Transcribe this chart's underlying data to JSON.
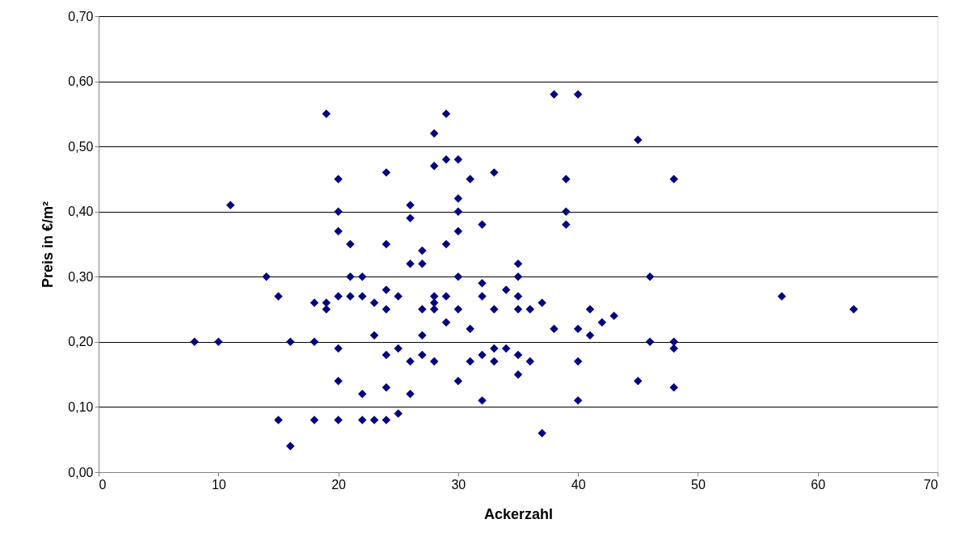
{
  "chart_data": {
    "type": "scatter",
    "xlabel": "Ackerzahl",
    "ylabel": "Preis in €/m²",
    "xlim": [
      0,
      70
    ],
    "xticks": [
      0,
      10,
      20,
      30,
      40,
      50,
      60,
      70
    ],
    "ylim": [
      0,
      0.7
    ],
    "yticks": [
      {
        "value": 0,
        "label": "0,00"
      },
      {
        "value": 0.1,
        "label": "0,10"
      },
      {
        "value": 0.2,
        "label": "0,20"
      },
      {
        "value": 0.3,
        "label": "0,30"
      },
      {
        "value": 0.4,
        "label": "0,40"
      },
      {
        "value": 0.5,
        "label": "0,50"
      },
      {
        "value": 0.6,
        "label": "0,60"
      },
      {
        "value": 0.7,
        "label": "0,70"
      }
    ],
    "grid": "y",
    "marker": "diamond",
    "series": [
      {
        "color": "#000080",
        "x": [
          8,
          10,
          11,
          14,
          15,
          15,
          16,
          16,
          18,
          18,
          18,
          19,
          19,
          19,
          20,
          20,
          20,
          20,
          20,
          20,
          20,
          21,
          21,
          21,
          22,
          22,
          22,
          22,
          23,
          23,
          23,
          24,
          24,
          24,
          24,
          24,
          24,
          24,
          25,
          25,
          25,
          26,
          26,
          26,
          26,
          26,
          27,
          27,
          27,
          27,
          27,
          28,
          28,
          28,
          28,
          28,
          28,
          29,
          29,
          29,
          29,
          29,
          30,
          30,
          30,
          30,
          30,
          30,
          30,
          31,
          31,
          31,
          32,
          32,
          32,
          32,
          32,
          33,
          33,
          33,
          33,
          34,
          34,
          35,
          35,
          35,
          35,
          35,
          35,
          36,
          36,
          37,
          37,
          38,
          38,
          39,
          39,
          39,
          40,
          40,
          40,
          40,
          41,
          41,
          42,
          43,
          45,
          45,
          46,
          46,
          48,
          48,
          48,
          48,
          57,
          63
        ],
        "values": [
          0.2,
          0.2,
          0.41,
          0.3,
          0.27,
          0.08,
          0.2,
          0.04,
          0.26,
          0.2,
          0.08,
          0.55,
          0.26,
          0.25,
          0.45,
          0.4,
          0.37,
          0.27,
          0.19,
          0.14,
          0.08,
          0.35,
          0.3,
          0.27,
          0.3,
          0.27,
          0.12,
          0.08,
          0.26,
          0.21,
          0.08,
          0.46,
          0.35,
          0.28,
          0.25,
          0.18,
          0.13,
          0.08,
          0.27,
          0.19,
          0.09,
          0.41,
          0.39,
          0.32,
          0.17,
          0.12,
          0.34,
          0.32,
          0.25,
          0.21,
          0.18,
          0.52,
          0.47,
          0.27,
          0.26,
          0.25,
          0.17,
          0.55,
          0.48,
          0.35,
          0.27,
          0.23,
          0.48,
          0.42,
          0.4,
          0.37,
          0.3,
          0.25,
          0.14,
          0.45,
          0.22,
          0.17,
          0.38,
          0.29,
          0.27,
          0.18,
          0.11,
          0.46,
          0.25,
          0.19,
          0.17,
          0.28,
          0.19,
          0.32,
          0.3,
          0.27,
          0.25,
          0.18,
          0.15,
          0.25,
          0.17,
          0.26,
          0.06,
          0.58,
          0.22,
          0.45,
          0.4,
          0.38,
          0.58,
          0.22,
          0.17,
          0.11,
          0.25,
          0.21,
          0.23,
          0.24,
          0.51,
          0.14,
          0.3,
          0.2,
          0.45,
          0.2,
          0.19,
          0.13,
          0.27,
          0.25
        ]
      }
    ]
  }
}
